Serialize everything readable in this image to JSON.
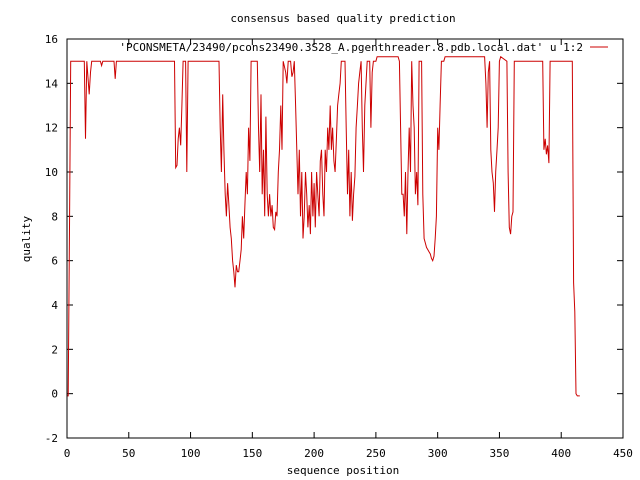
{
  "chart_data": {
    "type": "line",
    "title": "consensus based quality prediction",
    "xlabel": "sequence position",
    "ylabel": "quality",
    "xlim": [
      0,
      450
    ],
    "ylim": [
      -2,
      16
    ],
    "xticks": [
      0,
      50,
      100,
      150,
      200,
      250,
      300,
      350,
      400,
      450
    ],
    "yticks": [
      -2,
      0,
      2,
      4,
      6,
      8,
      10,
      12,
      14,
      16
    ],
    "legend_position": "top-right",
    "series": [
      {
        "name": "'PCONSMETA/23490/pcons23490.3S28_A.pgenthreader.8.pdb.local.dat' u 1:2",
        "color": "#cc0000",
        "points": [
          [
            0,
            -0.1
          ],
          [
            1,
            -0.1
          ],
          [
            2,
            7.5
          ],
          [
            3,
            15
          ],
          [
            14,
            15
          ],
          [
            15,
            11.5
          ],
          [
            16,
            15
          ],
          [
            18,
            13.5
          ],
          [
            19,
            14.5
          ],
          [
            20,
            15
          ],
          [
            27,
            15
          ],
          [
            28,
            14.8
          ],
          [
            29,
            15
          ],
          [
            38,
            15
          ],
          [
            39,
            14.2
          ],
          [
            40,
            15
          ],
          [
            87,
            15
          ],
          [
            88,
            10.2
          ],
          [
            89,
            10.3
          ],
          [
            90,
            11.5
          ],
          [
            91,
            12
          ],
          [
            92,
            11.2
          ],
          [
            93,
            13
          ],
          [
            94,
            15
          ],
          [
            96,
            15
          ],
          [
            97,
            10
          ],
          [
            98,
            15
          ],
          [
            123,
            15
          ],
          [
            124,
            12
          ],
          [
            125,
            10
          ],
          [
            126,
            13.5
          ],
          [
            127,
            11
          ],
          [
            128,
            9
          ],
          [
            129,
            8
          ],
          [
            130,
            9.5
          ],
          [
            131,
            8.5
          ],
          [
            132,
            7.5
          ],
          [
            133,
            7
          ],
          [
            134,
            6
          ],
          [
            135,
            5.5
          ],
          [
            136,
            4.8
          ],
          [
            137,
            5.8
          ],
          [
            138,
            5.5
          ],
          [
            139,
            5.5
          ],
          [
            140,
            6
          ],
          [
            141,
            6.5
          ],
          [
            142,
            8
          ],
          [
            143,
            7
          ],
          [
            144,
            8.5
          ],
          [
            145,
            10
          ],
          [
            146,
            9
          ],
          [
            147,
            12
          ],
          [
            148,
            10.5
          ],
          [
            149,
            15
          ],
          [
            154,
            15
          ],
          [
            155,
            12
          ],
          [
            156,
            10
          ],
          [
            157,
            13.5
          ],
          [
            158,
            9
          ],
          [
            159,
            11
          ],
          [
            160,
            8
          ],
          [
            161,
            12.5
          ],
          [
            162,
            9
          ],
          [
            163,
            8
          ],
          [
            164,
            9
          ],
          [
            165,
            8
          ],
          [
            166,
            8.5
          ],
          [
            167,
            7.5
          ],
          [
            168,
            7.4
          ],
          [
            169,
            8.2
          ],
          [
            170,
            8
          ],
          [
            171,
            10
          ],
          [
            172,
            11
          ],
          [
            173,
            13
          ],
          [
            174,
            11
          ],
          [
            175,
            15
          ],
          [
            177,
            14.5
          ],
          [
            178,
            14
          ],
          [
            179,
            15
          ],
          [
            181,
            15
          ],
          [
            182,
            14.3
          ],
          [
            183,
            14.5
          ],
          [
            184,
            15
          ],
          [
            185,
            13
          ],
          [
            186,
            11
          ],
          [
            187,
            9
          ],
          [
            188,
            11
          ],
          [
            189,
            8
          ],
          [
            190,
            10
          ],
          [
            191,
            7
          ],
          [
            192,
            8
          ],
          [
            193,
            10
          ],
          [
            194,
            9
          ],
          [
            195,
            7.5
          ],
          [
            196,
            8.5
          ],
          [
            197,
            7.2
          ],
          [
            198,
            10
          ],
          [
            199,
            8
          ],
          [
            200,
            9.5
          ],
          [
            201,
            7.5
          ],
          [
            202,
            10
          ],
          [
            203,
            9
          ],
          [
            204,
            8
          ],
          [
            205,
            10.5
          ],
          [
            206,
            11
          ],
          [
            207,
            9
          ],
          [
            208,
            8
          ],
          [
            209,
            11
          ],
          [
            210,
            10
          ],
          [
            211,
            12
          ],
          [
            212,
            11
          ],
          [
            213,
            13
          ],
          [
            214,
            11
          ],
          [
            215,
            12
          ],
          [
            216,
            10.5
          ],
          [
            217,
            10
          ],
          [
            218,
            11.5
          ],
          [
            219,
            13
          ],
          [
            220,
            13.5
          ],
          [
            221,
            14
          ],
          [
            222,
            15
          ],
          [
            225,
            15
          ],
          [
            226,
            12
          ],
          [
            227,
            9
          ],
          [
            228,
            11
          ],
          [
            229,
            8
          ],
          [
            230,
            10
          ],
          [
            231,
            7.8
          ],
          [
            232,
            9
          ],
          [
            233,
            9.8
          ],
          [
            234,
            12
          ],
          [
            235,
            13
          ],
          [
            236,
            14
          ],
          [
            237,
            14.5
          ],
          [
            238,
            15
          ],
          [
            239,
            12
          ],
          [
            240,
            10
          ],
          [
            241,
            13
          ],
          [
            242,
            14
          ],
          [
            243,
            15
          ],
          [
            245,
            15
          ],
          [
            246,
            12
          ],
          [
            247,
            14.5
          ],
          [
            248,
            15
          ],
          [
            250,
            15
          ],
          [
            251,
            15.2
          ],
          [
            268,
            15.2
          ],
          [
            269,
            15
          ],
          [
            270,
            12
          ],
          [
            271,
            9
          ],
          [
            272,
            9
          ],
          [
            273,
            8
          ],
          [
            274,
            10
          ],
          [
            275,
            7.2
          ],
          [
            276,
            10
          ],
          [
            277,
            12
          ],
          [
            278,
            10
          ],
          [
            279,
            15
          ],
          [
            280,
            13
          ],
          [
            281,
            12
          ],
          [
            282,
            9
          ],
          [
            283,
            10
          ],
          [
            284,
            8.5
          ],
          [
            285,
            15
          ],
          [
            287,
            15
          ],
          [
            288,
            9
          ],
          [
            289,
            7
          ],
          [
            290,
            6.8
          ],
          [
            291,
            6.6
          ],
          [
            292,
            6.5
          ],
          [
            293,
            6.4
          ],
          [
            294,
            6.3
          ],
          [
            295,
            6.1
          ],
          [
            296,
            6
          ],
          [
            297,
            6.2
          ],
          [
            298,
            7
          ],
          [
            299,
            8
          ],
          [
            300,
            12
          ],
          [
            301,
            11
          ],
          [
            302,
            13
          ],
          [
            303,
            15
          ],
          [
            305,
            15
          ],
          [
            306,
            15.2
          ],
          [
            338,
            15.2
          ],
          [
            339,
            14
          ],
          [
            340,
            12
          ],
          [
            341,
            14.5
          ],
          [
            342,
            15
          ],
          [
            343,
            11
          ],
          [
            344,
            10
          ],
          [
            345,
            9.5
          ],
          [
            346,
            8.2
          ],
          [
            347,
            10
          ],
          [
            348,
            11
          ],
          [
            349,
            12
          ],
          [
            350,
            15
          ],
          [
            351,
            15.2
          ],
          [
            356,
            15
          ],
          [
            357,
            10
          ],
          [
            358,
            7.5
          ],
          [
            359,
            7.2
          ],
          [
            360,
            8
          ],
          [
            361,
            8.2
          ],
          [
            362,
            15
          ],
          [
            385,
            15
          ],
          [
            386,
            11
          ],
          [
            387,
            11.5
          ],
          [
            388,
            10.8
          ],
          [
            389,
            11.2
          ],
          [
            390,
            10.4
          ],
          [
            391,
            15
          ],
          [
            409,
            15
          ],
          [
            410,
            5
          ],
          [
            411,
            3.7
          ],
          [
            412,
            0
          ],
          [
            413,
            -0.1
          ],
          [
            415,
            -0.1
          ]
        ]
      }
    ]
  }
}
